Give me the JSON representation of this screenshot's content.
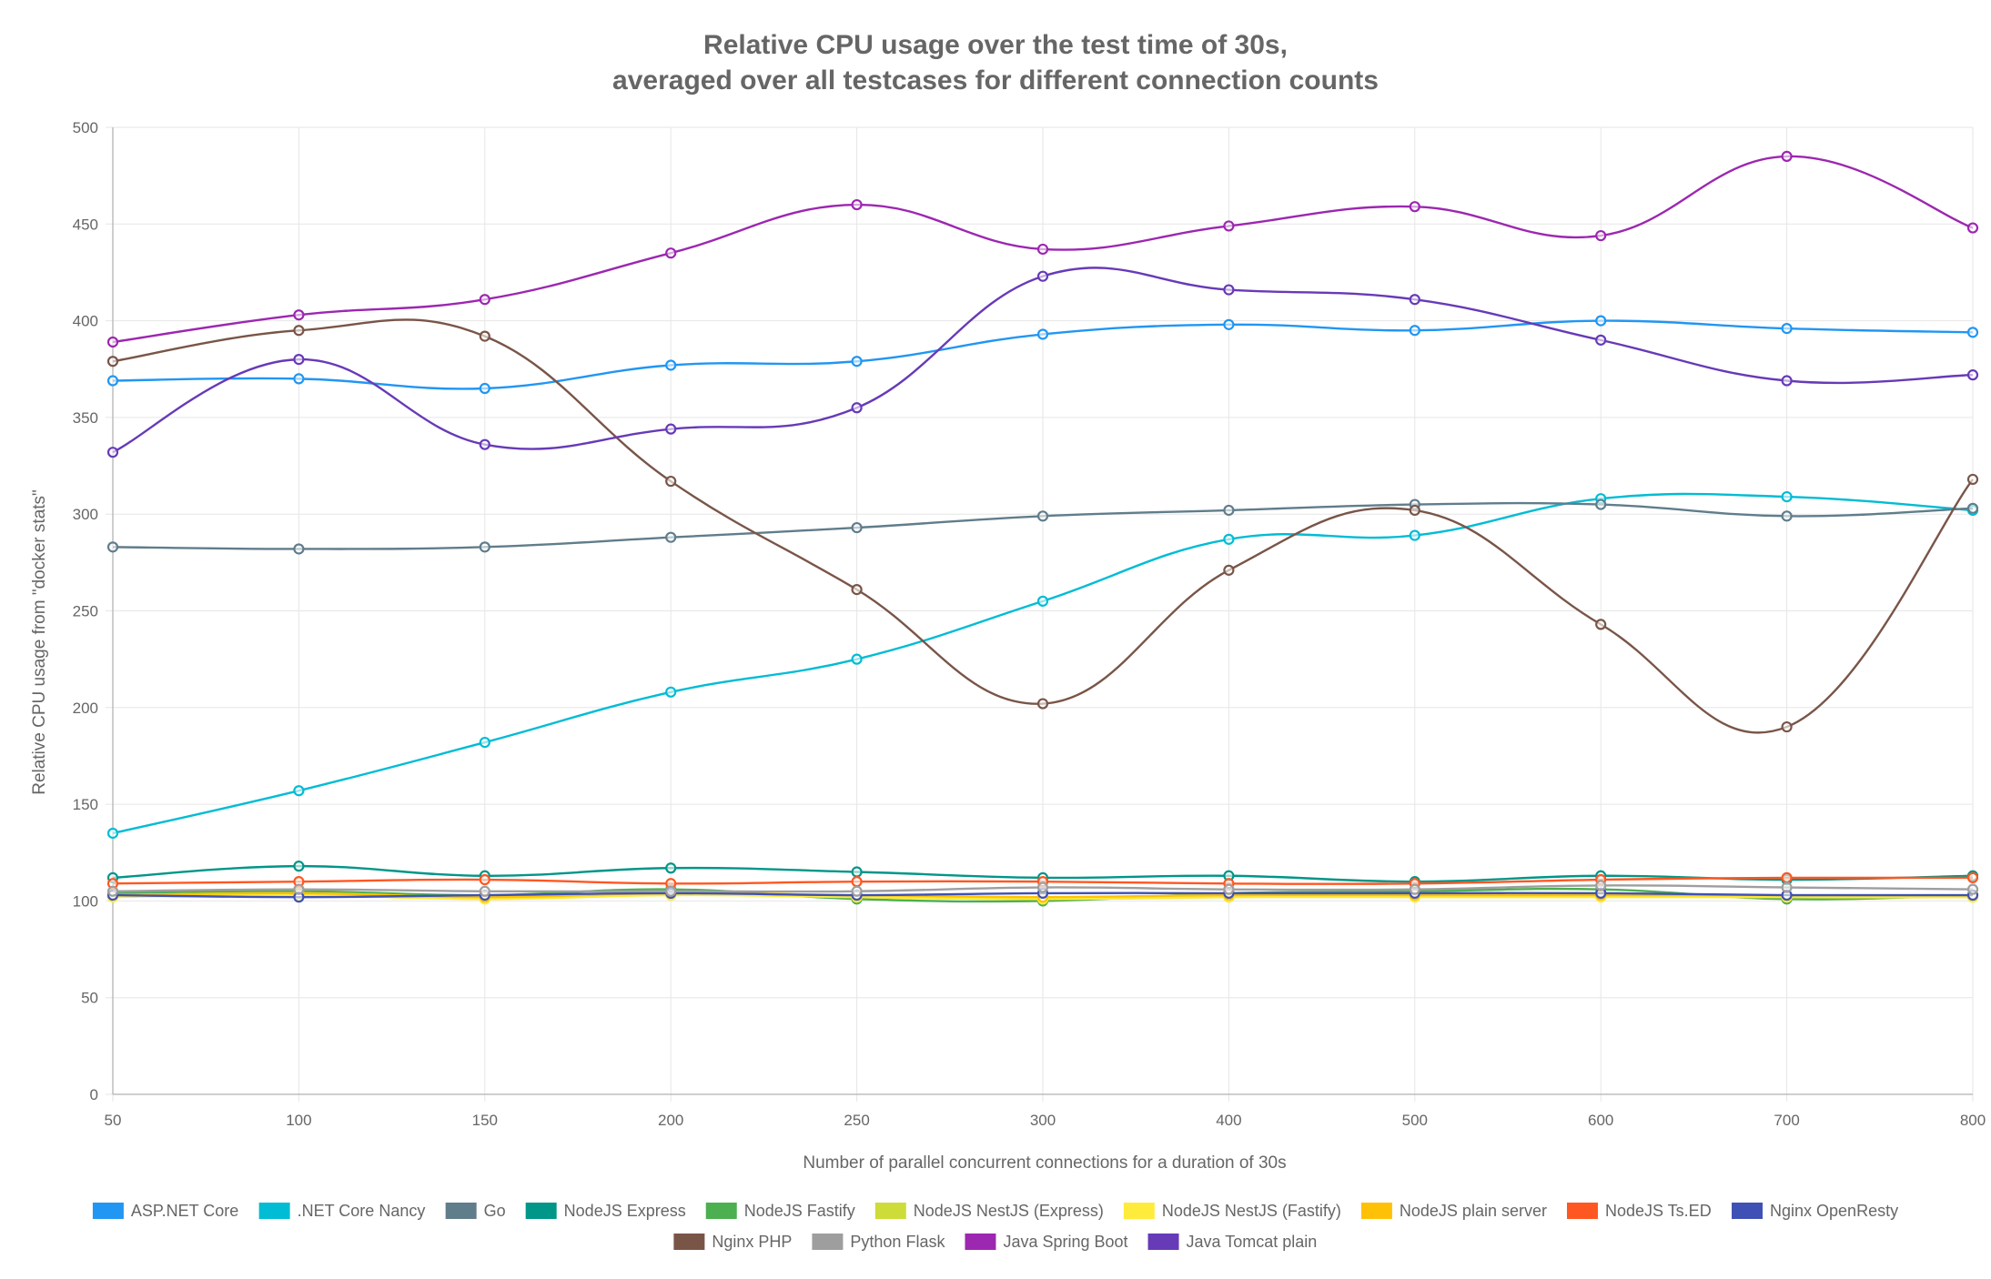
{
  "chart_data": {
    "type": "line",
    "title": [
      "Relative CPU usage over the test time of 30s,",
      "averaged over all testcases for different connection counts"
    ],
    "xlabel": "Number of parallel concurrent connections for a duration of 30s",
    "ylabel": "Relative CPU usage from \"docker stats\"",
    "categories": [
      "50",
      "100",
      "150",
      "200",
      "250",
      "300",
      "400",
      "500",
      "600",
      "700",
      "800"
    ],
    "ylim": [
      0,
      500
    ],
    "yticks": [
      "0",
      "50",
      "100",
      "150",
      "200",
      "250",
      "300",
      "350",
      "400",
      "450",
      "500"
    ],
    "grid": true,
    "legend_position": "bottom",
    "series": [
      {
        "name": "ASP.NET Core",
        "color": "#2196f3",
        "values": [
          369,
          370,
          365,
          377,
          379,
          393,
          398,
          395,
          400,
          396,
          394
        ]
      },
      {
        "name": ".NET Core Nancy",
        "color": "#00bcd4",
        "values": [
          135,
          157,
          182,
          208,
          225,
          255,
          287,
          289,
          308,
          309,
          302
        ]
      },
      {
        "name": "Go",
        "color": "#607d8b",
        "values": [
          283,
          282,
          283,
          288,
          293,
          299,
          302,
          305,
          305,
          299,
          303
        ]
      },
      {
        "name": "NodeJS Express",
        "color": "#009688",
        "values": [
          112,
          118,
          113,
          117,
          115,
          112,
          113,
          110,
          113,
          111,
          113
        ]
      },
      {
        "name": "NodeJS Fastify",
        "color": "#4caf50",
        "values": [
          104,
          105,
          103,
          106,
          101,
          100,
          104,
          105,
          106,
          101,
          103
        ]
      },
      {
        "name": "NodeJS NestJS (Express)",
        "color": "#cddc39",
        "values": [
          103,
          104,
          102,
          104,
          102,
          101,
          102,
          103,
          104,
          102,
          102
        ]
      },
      {
        "name": "NodeJS NestJS (Fastify)",
        "color": "#ffeb3b",
        "values": [
          102,
          103,
          101,
          103,
          102,
          101,
          102,
          102,
          102,
          102,
          102
        ]
      },
      {
        "name": "NodeJS plain server",
        "color": "#ffc107",
        "values": [
          103,
          104,
          102,
          104,
          103,
          102,
          103,
          103,
          103,
          103,
          103
        ]
      },
      {
        "name": "NodeJS Ts.ED",
        "color": "#ff5722",
        "values": [
          109,
          110,
          111,
          109,
          110,
          110,
          109,
          109,
          111,
          112,
          112
        ]
      },
      {
        "name": "Nginx OpenResty",
        "color": "#3f51b5",
        "values": [
          103,
          102,
          103,
          104,
          103,
          104,
          104,
          104,
          104,
          103,
          103
        ]
      },
      {
        "name": "Nginx PHP",
        "color": "#795548",
        "values": [
          379,
          395,
          392,
          317,
          261,
          202,
          271,
          302,
          243,
          190,
          318
        ]
      },
      {
        "name": "Python Flask",
        "color": "#9e9e9e",
        "values": [
          105,
          106,
          105,
          105,
          105,
          107,
          106,
          106,
          108,
          107,
          106
        ]
      },
      {
        "name": "Java Spring Boot",
        "color": "#9c27b0",
        "values": [
          389,
          403,
          411,
          435,
          460,
          437,
          449,
          459,
          444,
          485,
          448
        ]
      },
      {
        "name": "Java Tomcat plain",
        "color": "#673ab7",
        "values": [
          332,
          380,
          336,
          344,
          355,
          423,
          416,
          411,
          390,
          369,
          372
        ]
      }
    ]
  }
}
